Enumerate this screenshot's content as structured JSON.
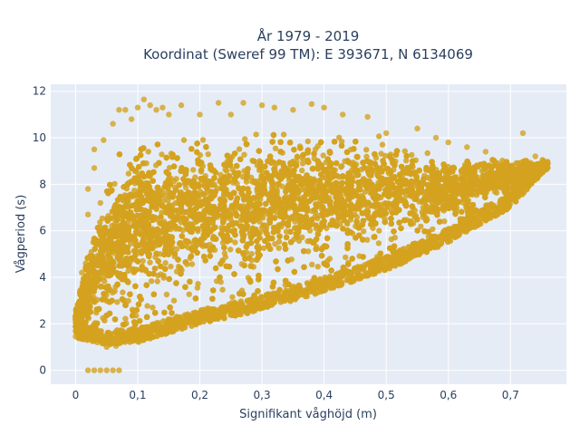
{
  "chart_data": {
    "type": "scatter",
    "title_line1": "År 1979 - 2019",
    "title_line2": "Koordinat (Sweref 99 TM): E 393671, N 6134069",
    "xlabel": "Signifikant våghöjd (m)",
    "ylabel": "Vågperiod (s)",
    "xlim": [
      -0.04,
      0.79
    ],
    "ylim": [
      -0.6,
      12.3
    ],
    "x_ticks": [
      0,
      0.1,
      0.2,
      0.3,
      0.4,
      0.5,
      0.6,
      0.7
    ],
    "x_tick_labels": [
      "0",
      "0,1",
      "0,2",
      "0,3",
      "0,4",
      "0,5",
      "0,6",
      "0,7"
    ],
    "y_ticks": [
      0,
      2,
      4,
      6,
      8,
      10,
      12
    ],
    "y_tick_labels": [
      "0",
      "2",
      "4",
      "6",
      "8",
      "10",
      "12"
    ],
    "grid": true,
    "colors": {
      "marker": "#d4a21e",
      "plot_bg": "#e5ecf6",
      "grid": "#ffffff",
      "text": "#2a3f5f"
    },
    "envelope": {
      "x": [
        0.0,
        0.05,
        0.1,
        0.15,
        0.2,
        0.3,
        0.4,
        0.5,
        0.6,
        0.7,
        0.76
      ],
      "y_lower": [
        1.4,
        1.1,
        1.2,
        1.6,
        2.0,
        2.6,
        3.4,
        4.3,
        5.5,
        7.0,
        8.7
      ],
      "y_upper": [
        3.0,
        9.5,
        11.5,
        11.5,
        11.5,
        11.5,
        11.5,
        11.0,
        10.0,
        9.5,
        9.0
      ]
    },
    "points": [
      [
        0.0,
        1.45
      ],
      [
        0.01,
        2.2
      ],
      [
        0.01,
        4.2
      ],
      [
        0.02,
        6.7
      ],
      [
        0.02,
        7.8
      ],
      [
        0.03,
        8.7
      ],
      [
        0.03,
        9.5
      ],
      [
        0.035,
        1.2
      ],
      [
        0.04,
        7.2
      ],
      [
        0.045,
        9.9
      ],
      [
        0.05,
        1.0
      ],
      [
        0.06,
        10.6
      ],
      [
        0.065,
        1.05
      ],
      [
        0.07,
        11.2
      ],
      [
        0.08,
        11.2
      ],
      [
        0.09,
        10.8
      ],
      [
        0.1,
        11.3
      ],
      [
        0.11,
        11.65
      ],
      [
        0.12,
        11.4
      ],
      [
        0.13,
        11.2
      ],
      [
        0.14,
        11.3
      ],
      [
        0.15,
        11.0
      ],
      [
        0.17,
        11.4
      ],
      [
        0.2,
        11.0
      ],
      [
        0.23,
        11.5
      ],
      [
        0.25,
        11.0
      ],
      [
        0.27,
        11.5
      ],
      [
        0.3,
        11.4
      ],
      [
        0.32,
        11.3
      ],
      [
        0.35,
        11.2
      ],
      [
        0.38,
        11.45
      ],
      [
        0.4,
        11.3
      ],
      [
        0.43,
        11.0
      ],
      [
        0.47,
        10.9
      ],
      [
        0.5,
        10.2
      ],
      [
        0.55,
        10.4
      ],
      [
        0.58,
        10.0
      ],
      [
        0.6,
        9.8
      ],
      [
        0.63,
        9.6
      ],
      [
        0.66,
        9.4
      ],
      [
        0.72,
        10.2
      ],
      [
        0.74,
        9.2
      ],
      [
        0.75,
        8.9
      ],
      [
        0.02,
        0.0
      ],
      [
        0.03,
        0.0
      ],
      [
        0.04,
        0.0
      ],
      [
        0.05,
        0.0
      ],
      [
        0.06,
        0.0
      ],
      [
        0.07,
        0.0
      ]
    ]
  }
}
